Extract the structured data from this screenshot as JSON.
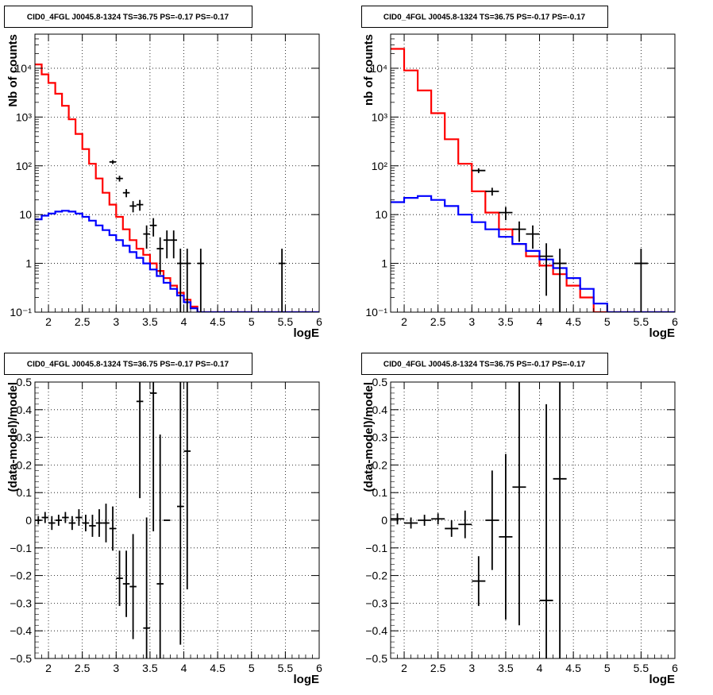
{
  "chart_data": [
    {
      "type": "line",
      "title": "CID0_4FGL J0045.8-1324 TS=36.75 PS=-0.17 PS=-0.17",
      "xlabel": "logE",
      "ylabel": "Nb of counts",
      "ylog": true,
      "xlim": [
        1.8,
        6.0
      ],
      "ylim": [
        0.1,
        50000
      ],
      "xticks": [
        2,
        2.5,
        3,
        3.5,
        4,
        4.5,
        5,
        5.5,
        6
      ],
      "xtick_labels": [
        "2",
        "2.5",
        "3",
        "3.5",
        "4",
        "4.5",
        "5",
        "5.5",
        "6"
      ],
      "yticks": [
        0.1,
        1,
        10,
        100,
        1000,
        10000
      ],
      "ytick_labels": [
        "10⁻¹",
        "1",
        "10",
        "10²",
        "10³",
        "10⁴"
      ],
      "grid": true,
      "series": [
        {
          "color": "#ff0000",
          "style": "hist",
          "edges": [
            1.8,
            1.9,
            2.0,
            2.1,
            2.2,
            2.3,
            2.4,
            2.5,
            2.6,
            2.7,
            2.8,
            2.9,
            3.0,
            3.1,
            3.2,
            3.3,
            3.4,
            3.5,
            3.6,
            3.7,
            3.8,
            3.9,
            4.0,
            4.1,
            4.2,
            4.3,
            4.4,
            4.5,
            4.6,
            4.7,
            4.8,
            4.9,
            5.0,
            5.1,
            5.2,
            5.3,
            5.4,
            5.5,
            5.6,
            5.7,
            5.8,
            5.9,
            6.0
          ],
          "values": [
            12000,
            7500,
            5000,
            3000,
            1700,
            900,
            450,
            220,
            110,
            55,
            28,
            16,
            9,
            5,
            3,
            2,
            1.5,
            1,
            0.7,
            0.5,
            0.35,
            0.25,
            0.18,
            0.13,
            0.1,
            0.1,
            0.1,
            0.1,
            0.1,
            0.1,
            0.1,
            0.1,
            0.1,
            0.1,
            0.1,
            0.1,
            0.1,
            0.1,
            0.1,
            0.1,
            0.1,
            0.1
          ]
        },
        {
          "color": "#0000ff",
          "style": "hist",
          "edges": [
            1.8,
            1.9,
            2.0,
            2.1,
            2.2,
            2.3,
            2.4,
            2.5,
            2.6,
            2.7,
            2.8,
            2.9,
            3.0,
            3.1,
            3.2,
            3.3,
            3.4,
            3.5,
            3.6,
            3.7,
            3.8,
            3.9,
            4.0,
            4.1,
            4.2,
            4.3,
            4.4,
            4.5,
            4.6,
            4.7,
            4.8,
            4.9,
            5.0,
            5.1,
            5.2,
            5.3,
            5.4,
            5.5,
            5.6,
            5.7,
            5.8,
            5.9,
            6.0
          ],
          "values": [
            8,
            9.5,
            10.5,
            11.5,
            12,
            11.5,
            10.5,
            9,
            7.5,
            6,
            4.8,
            3.8,
            3,
            2.3,
            1.7,
            1.3,
            1,
            0.75,
            0.55,
            0.4,
            0.3,
            0.22,
            0.16,
            0.12,
            0.1,
            0.1,
            0.1,
            0.1,
            0.1,
            0.1,
            0.1,
            0.1,
            0.1,
            0.1,
            0.1,
            0.1,
            0.1,
            0.1,
            0.1,
            0.1,
            0.1,
            0.1
          ]
        },
        {
          "color": "#000000",
          "style": "points",
          "x": [
            2.95,
            3.05,
            3.15,
            3.25,
            3.35,
            3.45,
            3.55,
            3.65,
            3.75,
            3.85,
            3.95,
            4.05,
            4.25,
            5.45
          ],
          "y": [
            120,
            55,
            28,
            15,
            16,
            4,
            6,
            2,
            3,
            3,
            1,
            1,
            1,
            1
          ],
          "xerr": 0.05
        }
      ]
    },
    {
      "type": "line",
      "title": "CID0_4FGL J0045.8-1324 TS=36.75 PS=-0.17 PS=-0.17",
      "xlabel": "logE",
      "ylabel": "nb of counts",
      "ylog": true,
      "xlim": [
        1.8,
        6.0
      ],
      "ylim": [
        0.1,
        50000
      ],
      "xticks": [
        2,
        2.5,
        3,
        3.5,
        4,
        4.5,
        5,
        5.5,
        6
      ],
      "xtick_labels": [
        "2",
        "2.5",
        "3",
        "3.5",
        "4",
        "4.5",
        "5",
        "5.5",
        "6"
      ],
      "yticks": [
        0.1,
        1,
        10,
        100,
        1000,
        10000
      ],
      "ytick_labels": [
        "10⁻¹",
        "1",
        "10",
        "10²",
        "10³",
        "10⁴"
      ],
      "grid": true,
      "series": [
        {
          "color": "#ff0000",
          "style": "hist",
          "edges": [
            1.8,
            2.0,
            2.2,
            2.4,
            2.6,
            2.8,
            3.0,
            3.2,
            3.4,
            3.6,
            3.8,
            4.0,
            4.2,
            4.4,
            4.6,
            4.8,
            5.0,
            5.2,
            5.4,
            5.6,
            5.8,
            6.0
          ],
          "values": [
            25000,
            9000,
            3500,
            1200,
            350,
            110,
            30,
            11,
            5,
            2.5,
            1.4,
            0.9,
            0.6,
            0.35,
            0.2,
            0.1,
            0.1,
            0.1,
            0.1,
            0.1,
            0.1
          ]
        },
        {
          "color": "#0000ff",
          "style": "hist",
          "edges": [
            1.8,
            2.0,
            2.2,
            2.4,
            2.6,
            2.8,
            3.0,
            3.2,
            3.4,
            3.6,
            3.8,
            4.0,
            4.2,
            4.4,
            4.6,
            4.8,
            5.0,
            5.2,
            5.4,
            5.6,
            5.8,
            6.0
          ],
          "values": [
            18,
            22,
            24,
            20,
            15,
            10,
            7,
            5,
            3.5,
            2.5,
            1.8,
            1.2,
            0.8,
            0.5,
            0.3,
            0.15,
            0.1,
            0.1,
            0.1,
            0.1,
            0.1
          ]
        },
        {
          "color": "#000000",
          "style": "points",
          "x": [
            3.1,
            3.3,
            3.5,
            3.7,
            3.9,
            4.1,
            4.3,
            5.5
          ],
          "y": [
            80,
            30,
            11,
            5,
            4,
            1.4,
            1,
            1
          ],
          "xerr": 0.1
        }
      ]
    },
    {
      "type": "scatter",
      "title": "CID0_4FGL J0045.8-1324 TS=36.75 PS=-0.17 PS=-0.17",
      "xlabel": "logE",
      "ylabel": "(data-model)/model",
      "xlim": [
        1.8,
        6.0
      ],
      "ylim": [
        -0.5,
        0.5
      ],
      "xticks": [
        2,
        2.5,
        3,
        3.5,
        4,
        4.5,
        5,
        5.5,
        6
      ],
      "xtick_labels": [
        "2",
        "2.5",
        "3",
        "3.5",
        "4",
        "4.5",
        "5",
        "5.5",
        "6"
      ],
      "yticks": [
        -0.5,
        -0.4,
        -0.3,
        -0.2,
        -0.1,
        0,
        0.1,
        0.2,
        0.3,
        0.4,
        0.5
      ],
      "ytick_labels": [
        "−0.5",
        "−0.4",
        "−0.3",
        "−0.2",
        "−0.1",
        "0",
        "0.1",
        "0.2",
        "0.3",
        "0.4",
        "0.5"
      ],
      "grid": true,
      "series": [
        {
          "color": "#000000",
          "style": "points",
          "x": [
            1.85,
            1.95,
            2.05,
            2.15,
            2.25,
            2.35,
            2.45,
            2.55,
            2.65,
            2.75,
            2.85,
            2.95,
            3.05,
            3.15,
            3.25,
            3.35,
            3.45,
            3.55,
            3.65,
            3.75,
            3.95,
            4.05
          ],
          "y": [
            0.0,
            0.01,
            -0.01,
            0.0,
            0.01,
            -0.01,
            0.01,
            -0.01,
            -0.02,
            -0.01,
            -0.01,
            -0.03,
            -0.21,
            -0.23,
            -0.24,
            0.43,
            -0.39,
            0.46,
            -0.23,
            0.0,
            0.05,
            0.25
          ],
          "yerr": [
            0.015,
            0.02,
            0.025,
            0.02,
            0.02,
            0.025,
            0.03,
            0.03,
            0.04,
            0.05,
            0.07,
            0.08,
            0.1,
            0.12,
            0.19,
            0.35,
            0.4,
            0.5,
            0.54,
            0.0,
            0.5,
            0.5
          ],
          "xerr": 0.05
        }
      ]
    },
    {
      "type": "scatter",
      "title": "CID0_4FGL J0045.8-1324 TS=36.75 PS=-0.17 PS=-0.17",
      "xlabel": "logE",
      "ylabel": "(data-model)/model",
      "xlim": [
        1.8,
        6.0
      ],
      "ylim": [
        -0.5,
        0.5
      ],
      "xticks": [
        2,
        2.5,
        3,
        3.5,
        4,
        4.5,
        5,
        5.5,
        6
      ],
      "xtick_labels": [
        "2",
        "2.5",
        "3",
        "3.5",
        "4",
        "4.5",
        "5",
        "5.5",
        "6"
      ],
      "yticks": [
        -0.5,
        -0.4,
        -0.3,
        -0.2,
        -0.1,
        0,
        0.1,
        0.2,
        0.3,
        0.4,
        0.5
      ],
      "ytick_labels": [
        "−0.5",
        "−0.4",
        "−0.3",
        "−0.2",
        "−0.1",
        "0",
        "0.1",
        "0.2",
        "0.3",
        "0.4",
        "0.5"
      ],
      "grid": true,
      "series": [
        {
          "color": "#000000",
          "style": "points",
          "x": [
            1.9,
            2.1,
            2.3,
            2.5,
            2.7,
            2.9,
            3.1,
            3.3,
            3.5,
            3.7,
            4.1,
            4.3
          ],
          "y": [
            0.005,
            -0.01,
            0.0,
            0.005,
            -0.03,
            -0.015,
            -0.22,
            0.0,
            -0.06,
            0.12,
            -0.29,
            0.15
          ],
          "yerr": [
            0.02,
            0.02,
            0.02,
            0.02,
            0.03,
            0.05,
            0.09,
            0.18,
            0.3,
            0.5,
            0.71,
            0.65
          ],
          "xerr": 0.1
        }
      ]
    }
  ]
}
